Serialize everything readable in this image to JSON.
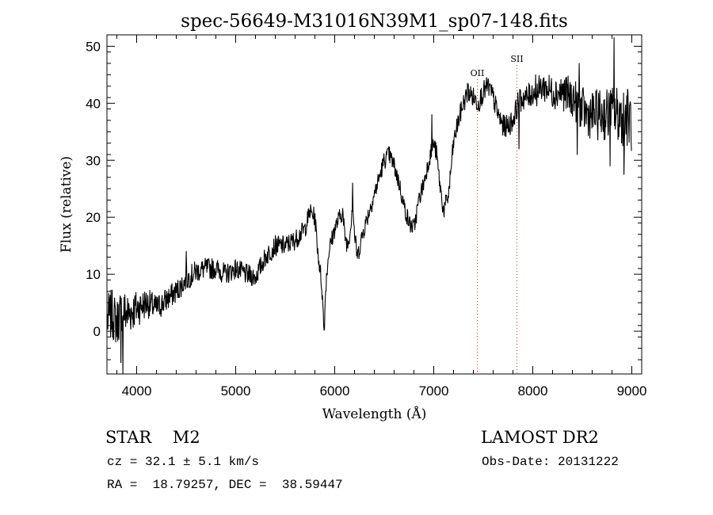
{
  "chart_data": {
    "type": "line",
    "title": "spec-56649-M31016N39M1_sp07-148.fits",
    "xlabel": "Wavelength (Å)",
    "ylabel": "Flux (relative)",
    "xlim": [
      3700,
      9100
    ],
    "ylim": [
      -7.5,
      52
    ],
    "x_ticks": [
      4000,
      5000,
      6000,
      7000,
      8000,
      9000
    ],
    "y_ticks": [
      0,
      10,
      20,
      30,
      40,
      50
    ],
    "grid": false,
    "line_color": "#000000",
    "marker_color": "#cc3333",
    "annotations": [
      {
        "label": "OII",
        "wavelength": 7440
      },
      {
        "label": "SII",
        "wavelength": 7840
      }
    ],
    "series": [
      {
        "anchors": [
          [
            3700,
            2
          ],
          [
            3750,
            3
          ],
          [
            3800,
            1.5
          ],
          [
            3850,
            4
          ],
          [
            3900,
            3
          ],
          [
            4000,
            4
          ],
          [
            4100,
            5
          ],
          [
            4200,
            4
          ],
          [
            4300,
            5.5
          ],
          [
            4400,
            7
          ],
          [
            4500,
            9
          ],
          [
            4600,
            10.5
          ],
          [
            4700,
            11
          ],
          [
            4800,
            11
          ],
          [
            4900,
            10
          ],
          [
            5000,
            11
          ],
          [
            5100,
            10
          ],
          [
            5200,
            9.5
          ],
          [
            5300,
            13
          ],
          [
            5400,
            15
          ],
          [
            5500,
            15
          ],
          [
            5600,
            16
          ],
          [
            5700,
            18
          ],
          [
            5750,
            21
          ],
          [
            5800,
            20
          ],
          [
            5830,
            14
          ],
          [
            5870,
            8
          ],
          [
            5893,
            0
          ],
          [
            5910,
            8
          ],
          [
            5940,
            14
          ],
          [
            6000,
            18
          ],
          [
            6050,
            20
          ],
          [
            6080,
            21
          ],
          [
            6100,
            17
          ],
          [
            6130,
            15
          ],
          [
            6160,
            18
          ],
          [
            6180,
            23
          ],
          [
            6200,
            17
          ],
          [
            6230,
            13
          ],
          [
            6280,
            17
          ],
          [
            6330,
            20
          ],
          [
            6400,
            24
          ],
          [
            6450,
            27
          ],
          [
            6500,
            30
          ],
          [
            6550,
            31
          ],
          [
            6600,
            29
          ],
          [
            6650,
            26
          ],
          [
            6700,
            22
          ],
          [
            6750,
            19
          ],
          [
            6800,
            18
          ],
          [
            6850,
            23
          ],
          [
            6900,
            26
          ],
          [
            6950,
            30
          ],
          [
            7000,
            33
          ],
          [
            7030,
            31
          ],
          [
            7060,
            26
          ],
          [
            7100,
            21
          ],
          [
            7150,
            24
          ],
          [
            7200,
            33
          ],
          [
            7250,
            37
          ],
          [
            7300,
            40
          ],
          [
            7350,
            42
          ],
          [
            7400,
            41
          ],
          [
            7450,
            40
          ],
          [
            7500,
            42
          ],
          [
            7550,
            43
          ],
          [
            7600,
            41
          ],
          [
            7650,
            38
          ],
          [
            7700,
            36
          ],
          [
            7750,
            36
          ],
          [
            7800,
            37
          ],
          [
            7850,
            40
          ],
          [
            7900,
            41
          ],
          [
            7950,
            41
          ],
          [
            8000,
            42
          ],
          [
            8050,
            42
          ],
          [
            8100,
            43
          ],
          [
            8200,
            42
          ],
          [
            8300,
            42
          ],
          [
            8400,
            41
          ],
          [
            8500,
            39
          ],
          [
            8550,
            38
          ],
          [
            8600,
            38
          ],
          [
            8700,
            38
          ],
          [
            8800,
            38
          ],
          [
            8900,
            38
          ],
          [
            9000,
            37
          ]
        ],
        "features": [
          [
            3840,
            -5.5
          ],
          [
            3860,
            -7.5
          ],
          [
            4500,
            14
          ],
          [
            6180,
            26
          ],
          [
            6540,
            32
          ],
          [
            6980,
            38
          ],
          [
            7340,
            43.5
          ],
          [
            7860,
            32
          ],
          [
            8030,
            45
          ],
          [
            8470,
            47
          ],
          [
            8820,
            51.5
          ],
          [
            8780,
            29
          ],
          [
            8920,
            27.5
          ],
          [
            8450,
            31
          ]
        ],
        "noise": [
          [
            3700,
            4.5
          ],
          [
            3900,
            4
          ],
          [
            4100,
            2.6
          ],
          [
            4400,
            2
          ],
          [
            5000,
            1.8
          ],
          [
            5500,
            1.8
          ],
          [
            5800,
            1.6
          ],
          [
            6000,
            1.6
          ],
          [
            7000,
            1.6
          ],
          [
            7300,
            1.8
          ],
          [
            7800,
            2
          ],
          [
            8000,
            2.4
          ],
          [
            8400,
            3.5
          ],
          [
            8800,
            5
          ],
          [
            9050,
            6
          ]
        ]
      }
    ]
  },
  "info": {
    "object_class": "STAR    M2",
    "cz": "cz = 32.1 ± 5.1 km/s",
    "radec": "RA =  18.79257, DEC =  38.59447",
    "survey": "LAMOST DR2",
    "obs_date": "Obs-Date: 20131222"
  }
}
